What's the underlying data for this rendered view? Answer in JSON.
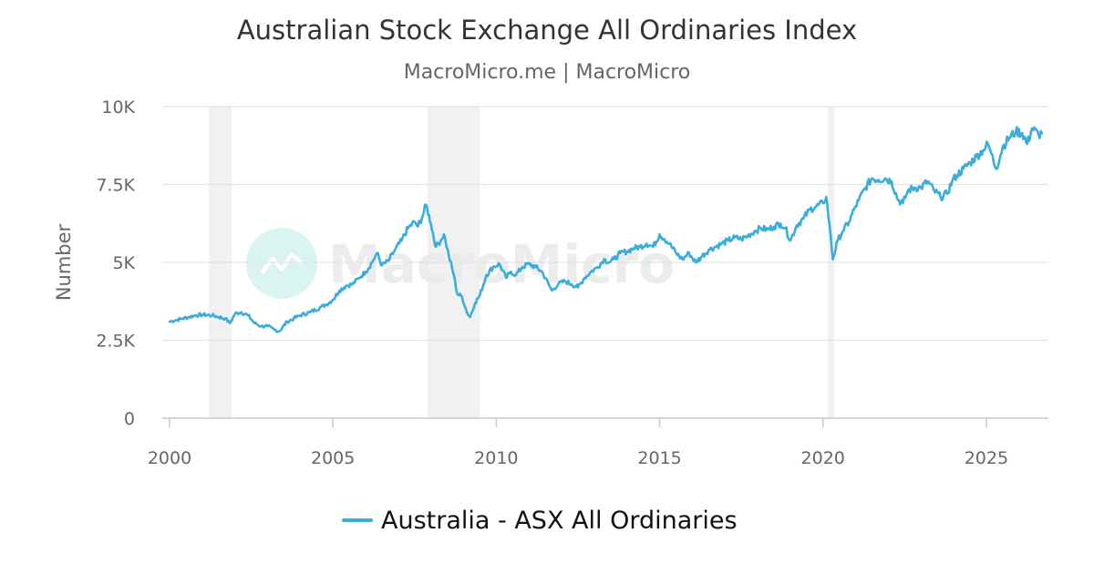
{
  "chart_data": {
    "type": "line",
    "title": "Australian Stock Exchange All Ordinaries Index",
    "subtitle": "MacroMicro.me | MacroMicro",
    "watermark": "MacroMicro",
    "ylabel": "Number",
    "xlabel": "",
    "xlim": [
      2000,
      2026.9
    ],
    "ylim": [
      0,
      10000
    ],
    "x_ticks": [
      {
        "value": 2000,
        "label": "2000"
      },
      {
        "value": 2005,
        "label": "2005"
      },
      {
        "value": 2010,
        "label": "2010"
      },
      {
        "value": 2015,
        "label": "2015"
      },
      {
        "value": 2020,
        "label": "2020"
      },
      {
        "value": 2025,
        "label": "2025"
      }
    ],
    "y_ticks": [
      {
        "value": 0,
        "label": "0"
      },
      {
        "value": 2500,
        "label": "2.5K"
      },
      {
        "value": 5000,
        "label": "5K"
      },
      {
        "value": 7500,
        "label": "7.5K"
      },
      {
        "value": 10000,
        "label": "10K"
      }
    ],
    "grid": true,
    "legend_position": "bottom-center",
    "shaded_periods": [
      [
        2001.2,
        2001.9
      ],
      [
        2007.9,
        2009.5
      ],
      [
        2020.15,
        2020.35
      ]
    ],
    "series": [
      {
        "name": "Australia - ASX All Ordinaries",
        "color": "#3cadd9",
        "x": [
          2000.0,
          2000.2,
          2000.4,
          2000.6,
          2000.8,
          2001.0,
          2001.3,
          2001.5,
          2001.7,
          2001.85,
          2002.0,
          2002.2,
          2002.4,
          2002.6,
          2002.8,
          2003.0,
          2003.2,
          2003.35,
          2003.6,
          2003.8,
          2004.0,
          2004.3,
          2004.6,
          2004.8,
          2005.0,
          2005.2,
          2005.4,
          2005.6,
          2005.8,
          2006.0,
          2006.2,
          2006.35,
          2006.5,
          2006.7,
          2006.9,
          2007.1,
          2007.3,
          2007.5,
          2007.6,
          2007.75,
          2007.85,
          2008.0,
          2008.15,
          2008.3,
          2008.4,
          2008.55,
          2008.7,
          2008.8,
          2008.95,
          2009.1,
          2009.2,
          2009.35,
          2009.5,
          2009.7,
          2009.9,
          2010.1,
          2010.3,
          2010.45,
          2010.6,
          2010.8,
          2011.0,
          2011.2,
          2011.4,
          2011.6,
          2011.7,
          2011.9,
          2012.1,
          2012.3,
          2012.5,
          2012.7,
          2012.9,
          2013.1,
          2013.3,
          2013.45,
          2013.6,
          2013.8,
          2014.0,
          2014.2,
          2014.4,
          2014.6,
          2014.8,
          2015.0,
          2015.15,
          2015.3,
          2015.5,
          2015.7,
          2015.9,
          2016.1,
          2016.3,
          2016.5,
          2016.7,
          2016.9,
          2017.1,
          2017.3,
          2017.5,
          2017.7,
          2017.9,
          2018.1,
          2018.3,
          2018.5,
          2018.7,
          2018.85,
          2019.0,
          2019.2,
          2019.4,
          2019.6,
          2019.8,
          2020.0,
          2020.1,
          2020.2,
          2020.3,
          2020.45,
          2020.6,
          2020.8,
          2020.95,
          2021.1,
          2021.3,
          2021.5,
          2021.7,
          2021.9,
          2022.1,
          2022.3,
          2022.45,
          2022.6,
          2022.8,
          2023.0,
          2023.2,
          2023.4,
          2023.6,
          2023.8,
          2023.95,
          2024.1,
          2024.3,
          2024.5,
          2024.7,
          2024.9,
          2025.05,
          2025.15,
          2025.3,
          2025.5,
          2025.7,
          2025.9,
          2026.1,
          2026.25,
          2026.4,
          2026.6,
          2026.7
        ],
        "y": [
          3100,
          3150,
          3200,
          3250,
          3300,
          3320,
          3300,
          3250,
          3200,
          3050,
          3350,
          3400,
          3300,
          3050,
          2950,
          2950,
          2850,
          2780,
          3100,
          3200,
          3300,
          3400,
          3550,
          3650,
          3800,
          4100,
          4250,
          4300,
          4500,
          4700,
          5000,
          5300,
          4900,
          5050,
          5400,
          5700,
          6100,
          6300,
          6150,
          6500,
          6850,
          6250,
          5500,
          5700,
          5900,
          5200,
          4600,
          4000,
          3900,
          3400,
          3250,
          3700,
          3950,
          4600,
          4850,
          4950,
          4500,
          4700,
          4600,
          4850,
          4950,
          4850,
          4700,
          4300,
          4100,
          4300,
          4400,
          4300,
          4200,
          4500,
          4700,
          4850,
          5100,
          5000,
          5100,
          5300,
          5350,
          5450,
          5500,
          5600,
          5500,
          5900,
          5750,
          5600,
          5300,
          5100,
          5300,
          5000,
          5200,
          5400,
          5500,
          5600,
          5700,
          5800,
          5750,
          5850,
          6000,
          6100,
          6050,
          6150,
          6250,
          6100,
          5700,
          6200,
          6400,
          6700,
          6800,
          6900,
          7100,
          6200,
          5100,
          5700,
          6000,
          6300,
          6700,
          7000,
          7400,
          7700,
          7650,
          7700,
          7600,
          7000,
          6900,
          7300,
          7400,
          7400,
          7600,
          7300,
          7100,
          7200,
          7600,
          7800,
          8000,
          8200,
          8400,
          8600,
          8800,
          8500,
          8000,
          8700,
          9000,
          9200,
          9150,
          8800,
          9300,
          9100,
          9150
        ]
      }
    ]
  }
}
